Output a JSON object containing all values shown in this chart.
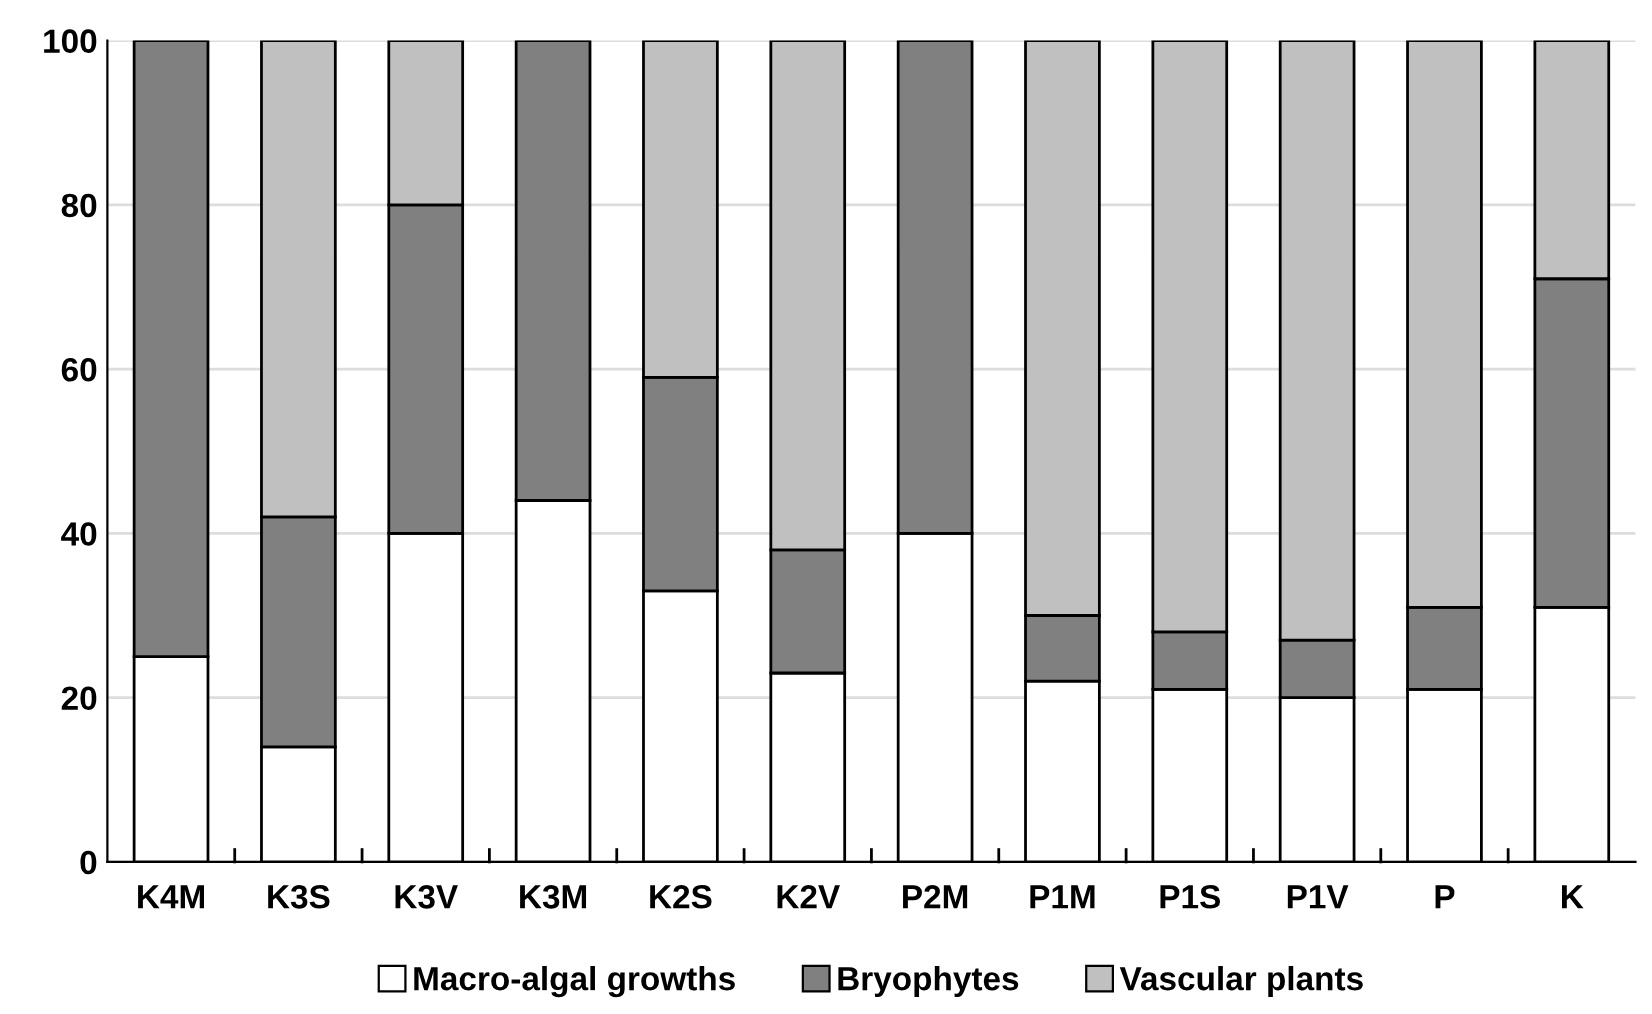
{
  "chart_data": {
    "type": "bar",
    "stacked": true,
    "categories": [
      "K4M",
      "K3S",
      "K3V",
      "K3M",
      "K2S",
      "K2V",
      "P2M",
      "P1M",
      "P1S",
      "P1V",
      "P",
      "K"
    ],
    "series": [
      {
        "name": "Macro-algal growths",
        "color": "#ffffff",
        "values": [
          25,
          14,
          40,
          44,
          33,
          23,
          40,
          22,
          21,
          20,
          21,
          31
        ]
      },
      {
        "name": "Bryophytes",
        "color": "#808080",
        "values": [
          75,
          28,
          40,
          56,
          26,
          15,
          60,
          8,
          7,
          7,
          10,
          40
        ]
      },
      {
        "name": "Vascular plants",
        "color": "#c0c0c0",
        "values": [
          0,
          58,
          20,
          0,
          41,
          62,
          0,
          70,
          72,
          73,
          69,
          29
        ]
      }
    ],
    "ylim": [
      0,
      100
    ],
    "yticks": [
      0,
      20,
      40,
      60,
      80,
      100
    ],
    "grid": "y",
    "legend": "bottom"
  }
}
